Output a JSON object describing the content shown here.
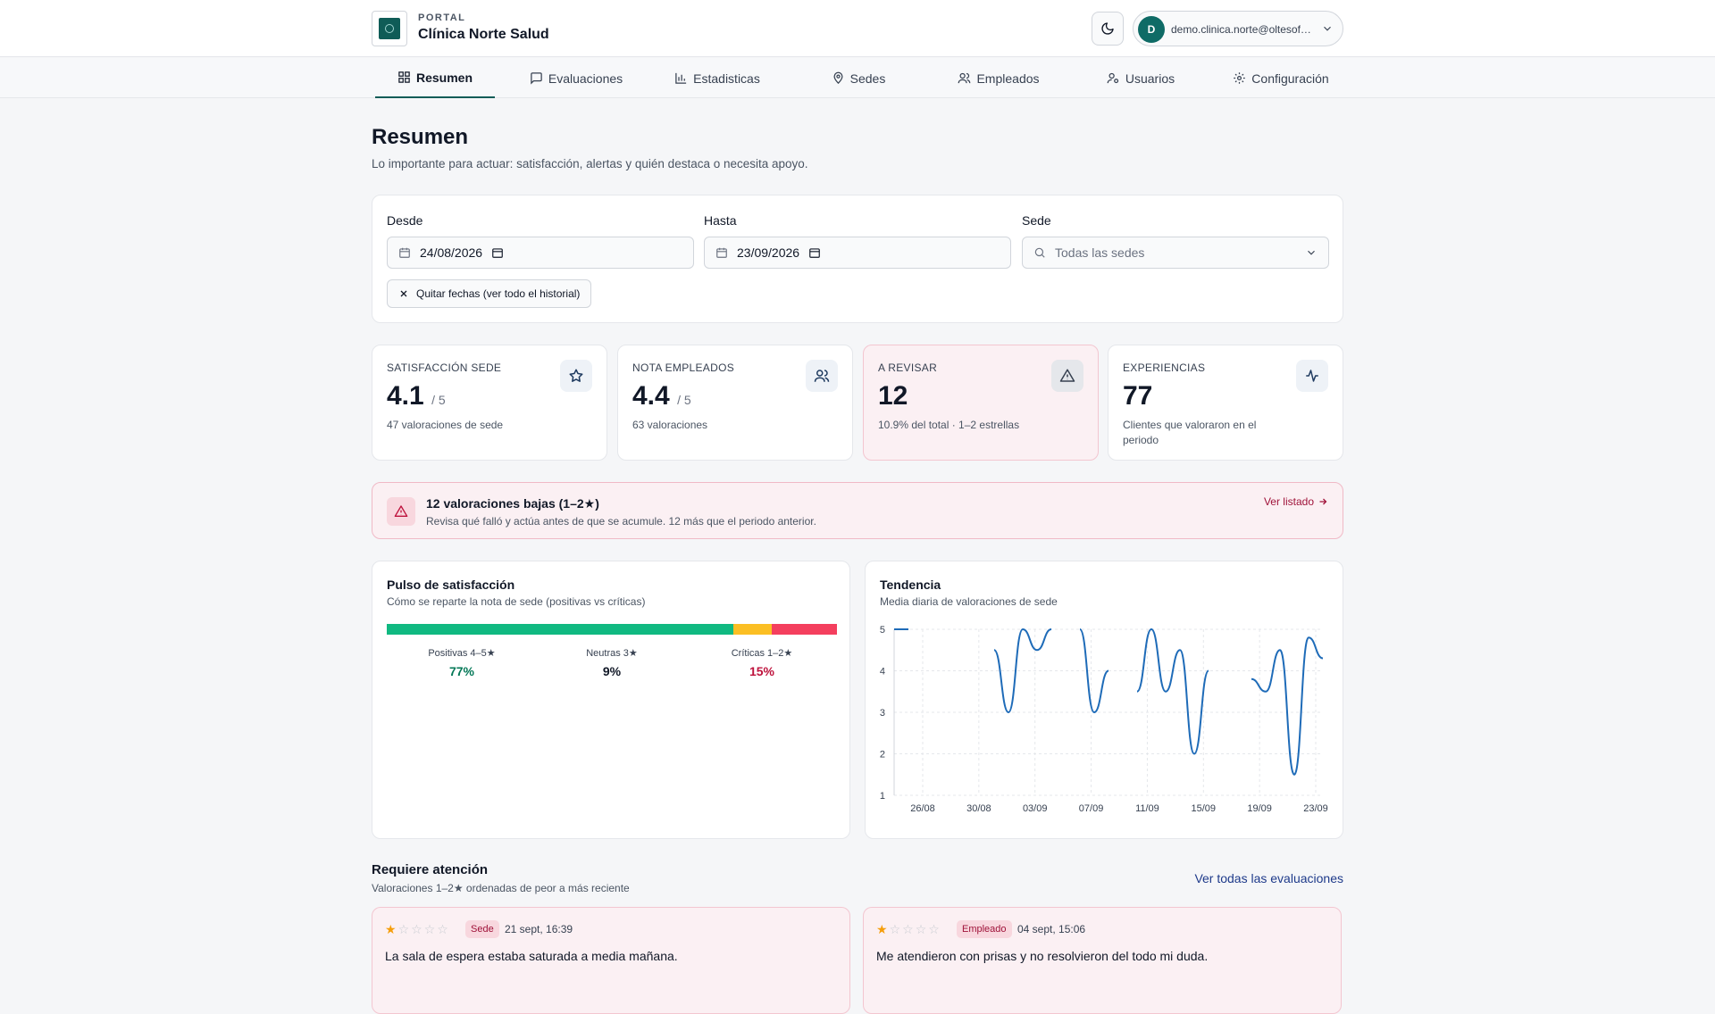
{
  "header": {
    "kicker": "PORTAL",
    "brand": "Clínica Norte Salud",
    "user_initial": "D",
    "user_email": "demo.clinica.norte@oltesof…"
  },
  "nav": {
    "tabs": [
      {
        "label": "Resumen",
        "icon": "dashboard-icon",
        "active": true
      },
      {
        "label": "Evaluaciones",
        "icon": "message-icon"
      },
      {
        "label": "Estadisticas",
        "icon": "bar-chart-icon"
      },
      {
        "label": "Sedes",
        "icon": "map-pin-icon"
      },
      {
        "label": "Empleados",
        "icon": "users-icon"
      },
      {
        "label": "Usuarios",
        "icon": "user-key-icon"
      },
      {
        "label": "Configuración",
        "icon": "gear-icon"
      }
    ]
  },
  "page": {
    "title": "Resumen",
    "subtitle": "Lo importante para actuar: satisfacción, alertas y quién destaca o necesita apoyo."
  },
  "filters": {
    "from_label": "Desde",
    "from_value": "24/08/2026",
    "to_label": "Hasta",
    "to_value": "23/09/2026",
    "site_label": "Sede",
    "site_placeholder": "Todas las sedes",
    "clear_label": "Quitar fechas (ver todo el historial)"
  },
  "kpis": [
    {
      "label": "SATISFACCIÓN SEDE",
      "value": "4.1",
      "suffix": "/ 5",
      "sub": "47 valoraciones de sede",
      "icon": "star-icon"
    },
    {
      "label": "NOTA EMPLEADOS",
      "value": "4.4",
      "suffix": "/ 5",
      "sub": "63 valoraciones",
      "icon": "users-icon"
    },
    {
      "label": "A REVISAR",
      "value": "12",
      "suffix": "",
      "sub": "10.9% del total · 1–2 estrellas",
      "icon": "warning-icon"
    },
    {
      "label": "EXPERIENCIAS",
      "value": "77",
      "suffix": "",
      "sub": "Clientes que valoraron en el periodo",
      "icon": "activity-icon"
    }
  ],
  "banner": {
    "title": "12 valoraciones bajas (1–2★)",
    "sub": "Revisa qué falló y actúa antes de que se acumule. 12 más que el periodo anterior.",
    "link": "Ver listado"
  },
  "pulse": {
    "title": "Pulso de satisfacción",
    "sub": "Cómo se reparte la nota de sede (positivas vs críticas)",
    "segments": [
      {
        "label": "Positivas 4–5★",
        "value": "77%",
        "pct": 77,
        "color": "#10b981",
        "text_color": "#047857"
      },
      {
        "label": "Neutras 3★",
        "value": "9%",
        "pct": 8.5,
        "color": "#fbbf24",
        "text_color": "#111827"
      },
      {
        "label": "Críticas 1–2★",
        "value": "15%",
        "pct": 14.5,
        "color": "#f43f5e",
        "text_color": "#be123c"
      }
    ]
  },
  "chart_data": {
    "type": "line",
    "title": "Tendencia",
    "subtitle": "Media diaria de valoraciones de sede",
    "x_ticks": [
      "26/08",
      "30/08",
      "03/09",
      "07/09",
      "11/09",
      "15/09",
      "19/09",
      "23/09"
    ],
    "y_ticks": [
      1,
      2,
      3,
      4,
      5
    ],
    "ylim": [
      1,
      5
    ],
    "color": "#1e6bb8",
    "segments": [
      [
        [
          0,
          5.0
        ],
        [
          1,
          5.0
        ]
      ],
      [
        [
          7,
          4.5
        ],
        [
          8,
          3.0
        ],
        [
          9,
          5.0
        ],
        [
          10,
          4.5
        ],
        [
          11,
          5.0
        ]
      ],
      [
        [
          13,
          5.0
        ],
        [
          14,
          3.0
        ],
        [
          15,
          4.0
        ]
      ],
      [
        [
          17,
          3.5
        ],
        [
          18,
          5.0
        ],
        [
          19,
          3.5
        ],
        [
          20,
          4.5
        ],
        [
          21,
          2.0
        ],
        [
          22,
          4.0
        ]
      ],
      [
        [
          25,
          3.8
        ],
        [
          26,
          3.5
        ],
        [
          27,
          4.5
        ],
        [
          28,
          1.5
        ],
        [
          29,
          4.8
        ],
        [
          30,
          4.3
        ]
      ]
    ]
  },
  "attention": {
    "title": "Requiere atención",
    "sub": "Valoraciones 1–2★ ordenadas de peor a más reciente",
    "link": "Ver todas las evaluaciones",
    "reviews": [
      {
        "stars": 1,
        "badge": "Sede",
        "date": "21 sept, 16:39",
        "text": "La sala de espera estaba saturada a media mañana."
      },
      {
        "stars": 1,
        "badge": "Empleado",
        "date": "04 sept, 15:06",
        "text": "Me atendieron con prisas y no resolvieron del todo mi duda."
      }
    ]
  }
}
